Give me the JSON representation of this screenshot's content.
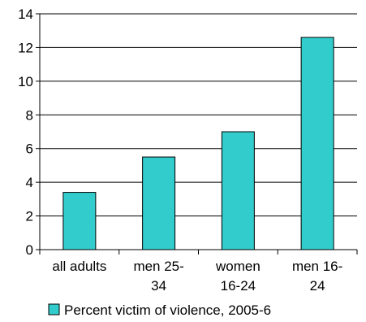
{
  "chart_data": {
    "type": "bar",
    "categories": [
      [
        "all adults"
      ],
      [
        "men 25-",
        "34"
      ],
      [
        "women",
        "16-24"
      ],
      [
        "men 16-",
        "24"
      ]
    ],
    "series": [
      {
        "name": "Percent victim of violence, 2005-6",
        "values": [
          3.4,
          5.5,
          7.0,
          12.6
        ]
      }
    ],
    "ylim": [
      0,
      14
    ],
    "yticks": [
      0,
      2,
      4,
      6,
      8,
      10,
      12,
      14
    ],
    "grid": true,
    "legend_position": "bottom",
    "colors": {
      "bar": "#33CCCC",
      "bar_stroke": "#000000",
      "grid": "#000000"
    }
  }
}
